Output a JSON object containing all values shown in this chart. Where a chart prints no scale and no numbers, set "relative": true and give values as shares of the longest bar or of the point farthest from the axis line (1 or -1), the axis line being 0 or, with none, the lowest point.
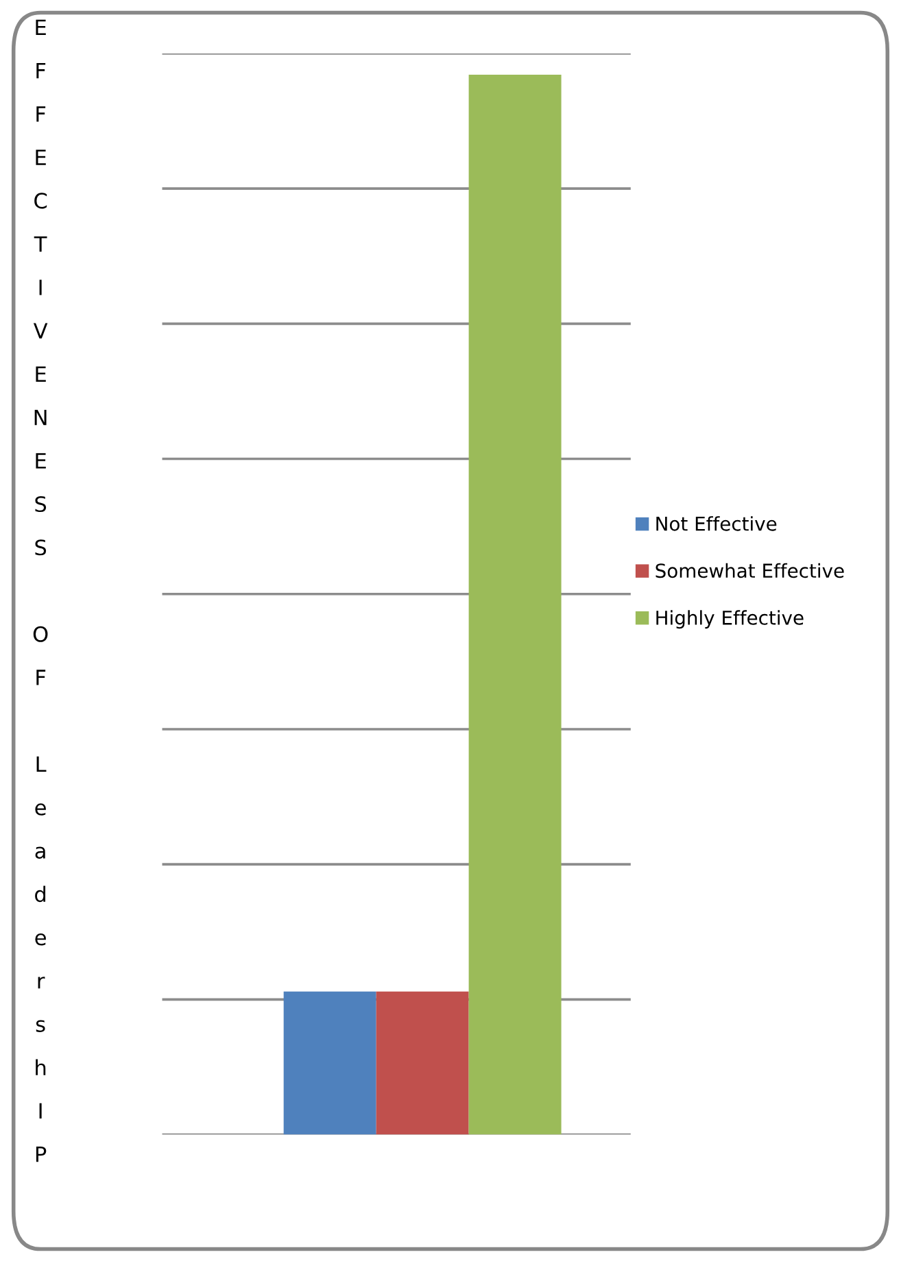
{
  "chart_data": {
    "type": "bar",
    "relative": true,
    "ylabel": "EFFECTIVENESS OF LeadershIP",
    "categories": [
      null
    ],
    "series": [
      {
        "name": "Not Effective",
        "color": "#4f81bd",
        "values": [
          0.135
        ]
      },
      {
        "name": "Somewhat Effective",
        "color": "#c0504d",
        "values": [
          0.135
        ]
      },
      {
        "name": "Highly Effective",
        "color": "#9bbb59",
        "values": [
          1
        ]
      }
    ],
    "grid": "y",
    "legend": "right"
  }
}
